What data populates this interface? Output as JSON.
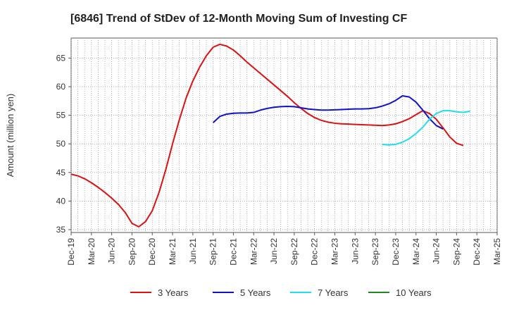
{
  "chart_data": {
    "type": "line",
    "title": "[6846]  Trend of StDev of 12-Month Moving Sum of Investing CF",
    "ylabel": "Amount (million yen)",
    "xlabel": "",
    "ylim": [
      34.5,
      68.5
    ],
    "yticks": [
      35,
      40,
      45,
      50,
      55,
      60,
      65
    ],
    "x_tick_labels": [
      "Dec-19",
      "Mar-20",
      "Jun-20",
      "Sep-20",
      "Dec-20",
      "Mar-21",
      "Jun-21",
      "Sep-21",
      "Dec-21",
      "Mar-22",
      "Jun-22",
      "Sep-22",
      "Dec-22",
      "Mar-23",
      "Jun-23",
      "Sep-23",
      "Dec-23",
      "Mar-24",
      "Jun-24",
      "Sep-24",
      "Dec-24",
      "Mar-25"
    ],
    "grid": true,
    "legend_position": "bottom",
    "series": [
      {
        "name": "3 Years",
        "color": "#dd1111",
        "start_index": 0,
        "values": [
          44.7,
          44.4,
          43.9,
          43.2,
          42.4,
          41.5,
          40.5,
          39.4,
          38.0,
          36.1,
          35.5,
          36.4,
          38.3,
          41.5,
          45.5,
          50.0,
          54.2,
          58.0,
          61.0,
          63.4,
          65.4,
          66.9,
          67.4,
          67.1,
          66.4,
          65.4,
          64.3,
          63.3,
          62.3,
          61.3,
          60.3,
          59.3,
          58.3,
          57.2,
          56.2,
          55.3,
          54.6,
          54.1,
          53.8,
          53.6,
          53.5,
          53.45,
          53.4,
          53.35,
          53.3,
          53.25,
          53.2,
          53.3,
          53.5,
          53.9,
          54.4,
          55.1,
          55.8,
          55.3,
          54.3,
          52.8,
          51.2,
          50.1,
          49.7
        ]
      },
      {
        "name": "5 Years",
        "color": "#1111cc",
        "start_index": 21,
        "values": [
          53.7,
          54.8,
          55.2,
          55.35,
          55.4,
          55.4,
          55.5,
          55.9,
          56.2,
          56.4,
          56.5,
          56.55,
          56.5,
          56.3,
          56.1,
          56.0,
          55.9,
          55.9,
          55.95,
          56.0,
          56.05,
          56.1,
          56.1,
          56.15,
          56.3,
          56.6,
          57.0,
          57.6,
          58.4,
          58.2,
          57.3,
          55.9,
          54.4,
          53.2,
          52.6
        ]
      },
      {
        "name": "7 Years",
        "color": "#22ddee",
        "start_index": 46,
        "values": [
          49.9,
          49.8,
          49.9,
          50.3,
          50.9,
          51.8,
          52.9,
          54.3,
          55.3,
          55.8,
          55.8,
          55.6,
          55.5,
          55.7
        ]
      },
      {
        "name": "10 Years",
        "color": "#228822",
        "start_index": 0,
        "values": []
      }
    ]
  }
}
